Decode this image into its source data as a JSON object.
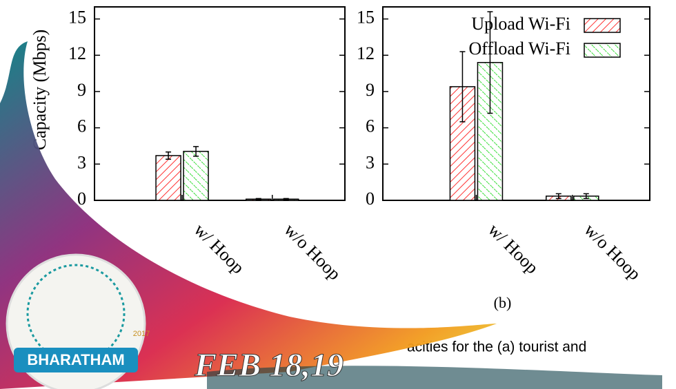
{
  "chart_data": [
    {
      "type": "bar",
      "y_label": "Capacity (Mbps)",
      "categories": [
        "w/ Hoop",
        "w/o Hoop"
      ],
      "series": [
        {
          "color": "#ff3333",
          "values": [
            3.7,
            0.1
          ],
          "errors": [
            0.3,
            0.05
          ]
        },
        {
          "color": "#33dd33",
          "values": [
            4.05,
            0.1
          ],
          "errors": [
            0.4,
            0.05
          ]
        }
      ],
      "ylim": [
        0,
        16
      ],
      "yticks": [
        0,
        3,
        6,
        9,
        12,
        15
      ]
    },
    {
      "type": "bar",
      "subcaption": "(b)",
      "categories": [
        "w/ Hoop",
        "w/o Hoop"
      ],
      "series": [
        {
          "name": "Upload Wi-Fi",
          "color": "#ff3333",
          "values": [
            9.4,
            0.35
          ],
          "errors": [
            2.9,
            0.2
          ]
        },
        {
          "name": "Offload Wi-Fi",
          "color": "#33dd33",
          "values": [
            11.4,
            0.35
          ],
          "errors": [
            4.2,
            0.2
          ]
        }
      ],
      "ylim": [
        0,
        16
      ],
      "yticks": [
        0,
        3,
        6,
        9,
        12,
        15
      ],
      "legend": "top-right"
    }
  ],
  "caption_fragment": "acities for the (a) tourist and",
  "banner": {
    "date": "FEB 18,19",
    "logo_name": "BHARATHAM",
    "logo_year": "2017"
  }
}
